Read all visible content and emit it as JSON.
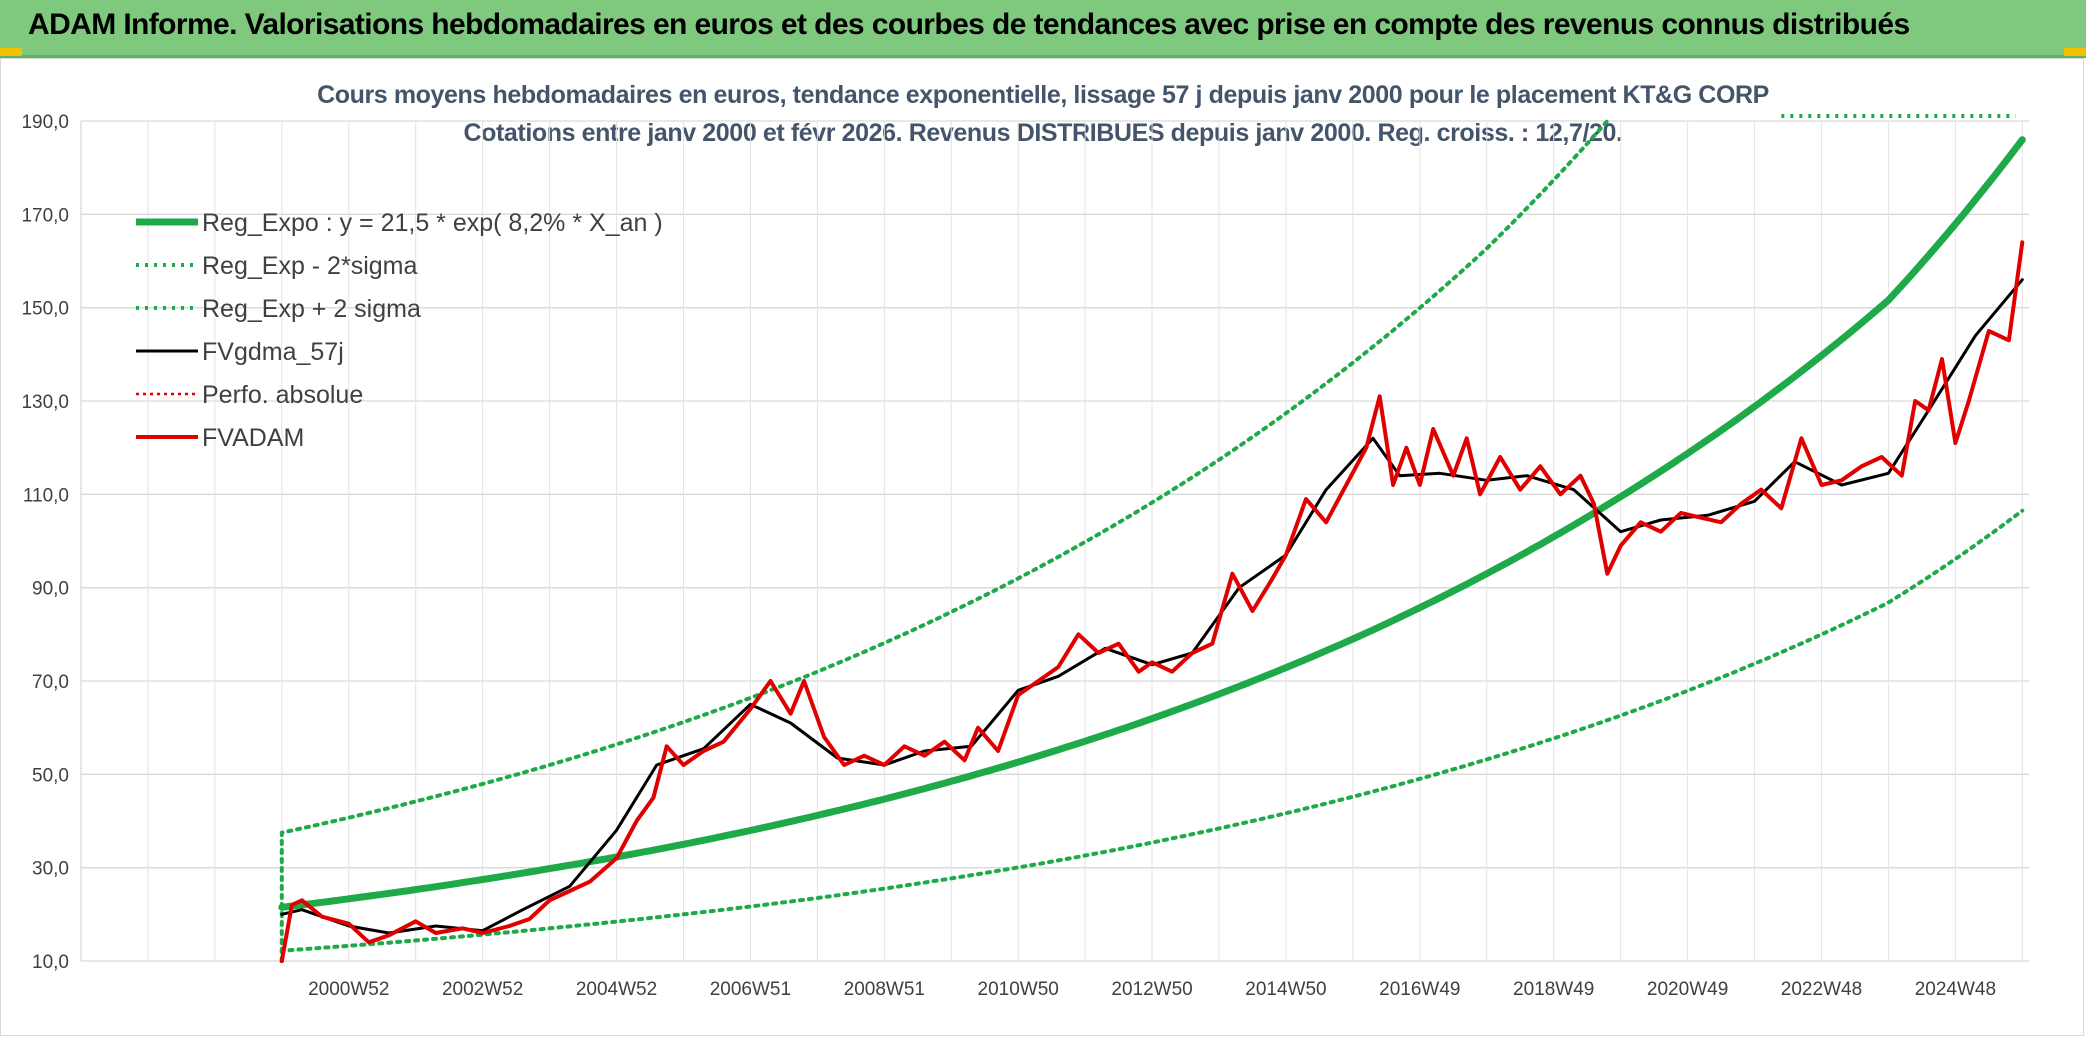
{
  "header": {
    "title": "ADAM Informe. Valorisations hebdomadaires en euros et des courbes de tendances avec prise en compte des revenus connus distribués"
  },
  "chart_data": {
    "type": "line",
    "subtitle_line1": "Cours moyens hebdomadaires en euros, tendance exponentielle, lissage 57 j depuis janv 2000 pour le placement KT&G CORP",
    "subtitle_line2": "Cotations entre janv 2000 et févr 2026. Revenus DISTRIBUES depuis janv 2000. Reg. croiss. : 12,7/20.",
    "ylim": [
      10,
      190
    ],
    "y_ticks": [
      "10,0",
      "30,0",
      "50,0",
      "70,0",
      "90,0",
      "110,0",
      "130,0",
      "150,0",
      "170,0",
      "190,0"
    ],
    "x_ticks": [
      "2000W52",
      "2002W52",
      "2004W52",
      "2006W51",
      "2008W51",
      "2010W50",
      "2012W50",
      "2014W50",
      "2016W49",
      "2018W49",
      "2020W49",
      "2022W48",
      "2024W48"
    ],
    "x_range_years": [
      1997,
      2026.1
    ],
    "grid": true,
    "legend_position": "top-left",
    "colors": {
      "reg_expo": "#1faa4a",
      "sigma": "#1faa4a",
      "fvgdma": "#000000",
      "perfo": "#e00000",
      "fvadam": "#e00000"
    },
    "legend": [
      "Reg_Expo : y = 21,5 * exp( 8,2% *  X_an )",
      "Reg_Exp - 2*sigma",
      "Reg_Exp + 2 sigma",
      "FVgdma_57j",
      "Perfo. absolue",
      "FVADAM"
    ],
    "series": [
      {
        "name": "Reg_Expo : y = 21,5 * exp( 8,2% *  X_an )",
        "x": [
          2000.0,
          2002.0,
          2004.0,
          2006.0,
          2008.0,
          2010.0,
          2012.0,
          2014.0,
          2016.0,
          2018.0,
          2020.0,
          2022.0,
          2024.0,
          2026.0
        ],
        "values": [
          21.5,
          25.3,
          29.8,
          35.0,
          41.2,
          48.5,
          57.1,
          67.2,
          79.0,
          93.0,
          109.5,
          128.8,
          151.6,
          186.0
        ]
      },
      {
        "name": "Reg_Exp - 2*sigma",
        "x": [
          2000.0,
          2002.0,
          2004.0,
          2006.0,
          2008.0,
          2010.0,
          2012.0,
          2014.0,
          2016.0,
          2018.0,
          2020.0,
          2022.0,
          2024.0,
          2026.0
        ],
        "values": [
          12.2,
          14.4,
          17.0,
          20.0,
          23.5,
          27.7,
          32.6,
          38.4,
          45.2,
          53.2,
          62.6,
          73.7,
          86.8,
          106.5
        ]
      },
      {
        "name": "Reg_Exp + 2 sigma",
        "x": [
          2000.0,
          2002.0,
          2004.0,
          2006.0,
          2008.0,
          2010.0,
          2012.0,
          2014.0,
          2016.0,
          2018.0,
          2019.8
        ],
        "values": [
          37.5,
          44.2,
          52.0,
          61.2,
          72.0,
          84.8,
          99.8,
          117.4,
          138.2,
          162.7,
          190.0
        ]
      },
      {
        "name": "FVgdma_57j",
        "x": [
          2000.0,
          2000.3,
          2001.0,
          2001.6,
          2002.3,
          2003.0,
          2003.6,
          2004.3,
          2005.0,
          2005.6,
          2006.3,
          2007.0,
          2007.6,
          2008.3,
          2009.0,
          2009.6,
          2010.3,
          2011.0,
          2011.6,
          2012.3,
          2013.0,
          2013.6,
          2014.3,
          2015.0,
          2015.6,
          2016.3,
          2016.7,
          2017.3,
          2018.0,
          2018.6,
          2019.3,
          2020.0,
          2020.6,
          2021.3,
          2022.0,
          2022.6,
          2023.3,
          2024.0,
          2024.6,
          2025.3,
          2026.0
        ],
        "values": [
          20.0,
          21.0,
          17.5,
          16.0,
          17.5,
          16.5,
          21.0,
          26.0,
          38.0,
          52.0,
          55.5,
          65.0,
          61.0,
          53.5,
          52.0,
          55.0,
          56.0,
          68.0,
          71.0,
          77.0,
          73.5,
          76.0,
          90.0,
          97.0,
          111.0,
          122.0,
          114.0,
          114.5,
          113.0,
          114.0,
          111.0,
          102.0,
          104.5,
          105.5,
          108.5,
          117.0,
          112.0,
          114.5,
          128.0,
          144.0,
          156.0
        ]
      },
      {
        "name": "Perfo. absolue",
        "x": [],
        "values": []
      },
      {
        "name": "FVADAM",
        "x": [
          2000.0,
          2000.15,
          2000.3,
          2000.6,
          2001.0,
          2001.3,
          2001.6,
          2002.0,
          2002.3,
          2002.7,
          2003.0,
          2003.4,
          2003.7,
          2004.0,
          2004.3,
          2004.6,
          2005.0,
          2005.3,
          2005.55,
          2005.75,
          2006.0,
          2006.3,
          2006.6,
          2007.0,
          2007.3,
          2007.6,
          2007.8,
          2008.1,
          2008.4,
          2008.7,
          2009.0,
          2009.3,
          2009.6,
          2009.9,
          2010.2,
          2010.4,
          2010.7,
          2011.0,
          2011.3,
          2011.6,
          2011.9,
          2012.2,
          2012.5,
          2012.8,
          2013.0,
          2013.3,
          2013.6,
          2013.9,
          2014.2,
          2014.5,
          2014.8,
          2015.0,
          2015.3,
          2015.6,
          2015.9,
          2016.2,
          2016.4,
          2016.6,
          2016.8,
          2017.0,
          2017.2,
          2017.5,
          2017.7,
          2017.9,
          2018.2,
          2018.5,
          2018.8,
          2019.1,
          2019.4,
          2019.6,
          2019.8,
          2020.0,
          2020.3,
          2020.6,
          2020.9,
          2021.2,
          2021.5,
          2021.8,
          2022.1,
          2022.4,
          2022.7,
          2023.0,
          2023.3,
          2023.6,
          2023.9,
          2024.2,
          2024.4,
          2024.6,
          2024.8,
          2025.0,
          2025.2,
          2025.5,
          2025.8,
          2026.0
        ],
        "values": [
          10.0,
          22.0,
          23.0,
          19.5,
          18.0,
          14.0,
          15.5,
          18.5,
          16.0,
          17.0,
          16.0,
          17.5,
          19.0,
          23.0,
          25.0,
          27.0,
          32.0,
          40.0,
          45.0,
          56.0,
          52.0,
          55.0,
          57.0,
          64.0,
          70.0,
          63.0,
          70.0,
          58.0,
          52.0,
          54.0,
          52.0,
          56.0,
          54.0,
          57.0,
          53.0,
          60.0,
          55.0,
          67.0,
          70.0,
          73.0,
          80.0,
          76.0,
          78.0,
          72.0,
          74.0,
          72.0,
          76.0,
          78.0,
          93.0,
          85.0,
          92.0,
          97.0,
          109.0,
          104.0,
          112.0,
          120.0,
          131.0,
          112.0,
          120.0,
          112.0,
          124.0,
          114.0,
          122.0,
          110.0,
          118.0,
          111.0,
          116.0,
          110.0,
          114.0,
          108.0,
          93.0,
          99.0,
          104.0,
          102.0,
          106.0,
          105.0,
          104.0,
          108.0,
          111.0,
          107.0,
          122.0,
          112.0,
          113.0,
          116.0,
          118.0,
          114.0,
          130.0,
          128.0,
          139.0,
          121.0,
          130.0,
          145.0,
          143.0,
          164.0
        ]
      }
    ]
  }
}
